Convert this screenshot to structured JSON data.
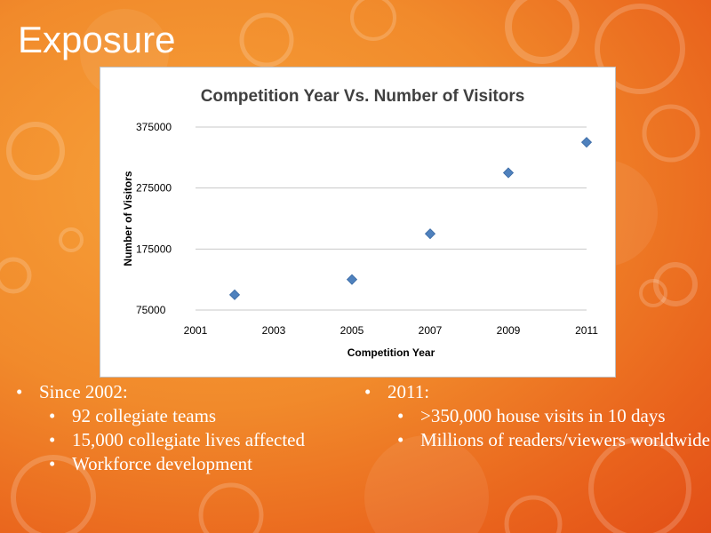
{
  "slide": {
    "title": "Exposure"
  },
  "left_bullets": {
    "heading": "Since 2002:",
    "items": [
      "92 collegiate teams",
      "15,000 collegiate lives affected",
      "Workforce development"
    ]
  },
  "right_bullets": {
    "heading": "2011:",
    "items": [
      ">350,000 house visits in 10 days",
      "Millions of readers/viewers worldwide"
    ]
  },
  "colors": {
    "marker": "#4f81bd",
    "gridline": "#c8c8c8"
  },
  "chart_data": {
    "type": "scatter",
    "title": "Competition Year Vs. Number of Visitors",
    "xlabel": "Competition Year",
    "ylabel": "Number of Visitors",
    "xlim": [
      2001,
      2011
    ],
    "ylim": [
      75000,
      375000
    ],
    "x_ticks": [
      2001,
      2003,
      2005,
      2007,
      2009,
      2011
    ],
    "y_ticks": [
      75000,
      175000,
      275000,
      375000
    ],
    "x_tick_labels": [
      "2001",
      "2003",
      "2005",
      "2007",
      "2009",
      "2011"
    ],
    "y_tick_labels": [
      "75000",
      "175000",
      "275000",
      "375000"
    ],
    "grid": "horizontal",
    "legend": "none",
    "series": [
      {
        "x": [
          2002,
          2005,
          2007,
          2009,
          2011
        ],
        "y": [
          100000,
          125000,
          200000,
          300000,
          350000
        ]
      }
    ]
  }
}
